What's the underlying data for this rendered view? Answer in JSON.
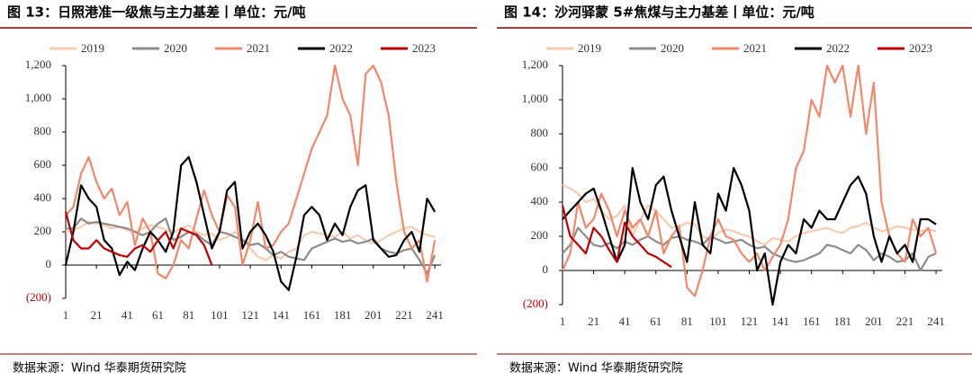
{
  "chart_data": [
    {
      "type": "line",
      "title": "图 13：日照港准一级焦与主力基差丨单位：元/吨",
      "source": "数据来源：Wind 华泰期货研究院",
      "x": [
        1,
        6,
        11,
        16,
        21,
        26,
        31,
        36,
        41,
        46,
        51,
        56,
        61,
        66,
        71,
        76,
        81,
        86,
        91,
        96,
        101,
        106,
        111,
        116,
        121,
        126,
        131,
        136,
        141,
        146,
        151,
        156,
        161,
        166,
        171,
        176,
        181,
        186,
        191,
        196,
        201,
        206,
        211,
        216,
        221,
        226,
        231,
        236,
        241
      ],
      "xlim": [
        1,
        245
      ],
      "xticks": [
        1,
        21,
        41,
        61,
        81,
        101,
        121,
        141,
        161,
        181,
        201,
        221,
        241
      ],
      "ylim": [
        -200,
        1200
      ],
      "yticks": [
        {
          "value": -200,
          "label": "(200)"
        },
        0,
        200,
        400,
        600,
        800,
        {
          "value": 1000,
          "label": "1,000"
        },
        {
          "value": 1200,
          "label": "1,200"
        }
      ],
      "series": [
        {
          "name": "2019",
          "color": "#f8cbad",
          "values": [
            200,
            210,
            230,
            260,
            250,
            240,
            220,
            230,
            210,
            200,
            220,
            240,
            230,
            210,
            200,
            220,
            240,
            200,
            180,
            190,
            150,
            170,
            200,
            160,
            100,
            50,
            30,
            60,
            40,
            80,
            100,
            180,
            200,
            190,
            180,
            170,
            200,
            160,
            180,
            150,
            130,
            150,
            180,
            200,
            220,
            230,
            200,
            180,
            170
          ]
        },
        {
          "name": "2020",
          "color": "#8c8c8c",
          "values": [
            220,
            220,
            280,
            250,
            260,
            250,
            240,
            230,
            220,
            200,
            180,
            200,
            250,
            280,
            150,
            170,
            200,
            190,
            150,
            120,
            200,
            190,
            170,
            150,
            120,
            130,
            100,
            60,
            80,
            50,
            40,
            30,
            100,
            120,
            140,
            160,
            140,
            150,
            130,
            140,
            160,
            100,
            80,
            70,
            90,
            100,
            30,
            -50,
            60
          ]
        },
        {
          "name": "2021",
          "color": "#f4876a",
          "values": [
            300,
            350,
            550,
            650,
            500,
            400,
            460,
            300,
            380,
            120,
            280,
            200,
            -50,
            -80,
            0,
            150,
            100,
            280,
            450,
            300,
            200,
            420,
            350,
            0,
            150,
            380,
            100,
            120,
            200,
            250,
            400,
            550,
            700,
            800,
            900,
            1200,
            1000,
            900,
            600,
            1150,
            1200,
            1100,
            900,
            500,
            200,
            100,
            150,
            -100,
            150
          ]
        },
        {
          "name": "2022",
          "color": "#000000",
          "values": [
            0,
            200,
            480,
            400,
            350,
            150,
            100,
            -60,
            20,
            -30,
            100,
            200,
            150,
            80,
            200,
            600,
            650,
            500,
            300,
            100,
            200,
            450,
            500,
            100,
            200,
            250,
            180,
            80,
            -100,
            -150,
            50,
            300,
            350,
            300,
            150,
            250,
            180,
            350,
            450,
            480,
            150,
            100,
            50,
            60,
            150,
            200,
            80,
            400,
            320
          ]
        },
        {
          "name": "2023",
          "color": "#c00000",
          "values": [
            320,
            150,
            100,
            100,
            150,
            100,
            80,
            60,
            50,
            100,
            120,
            80,
            150,
            200,
            100,
            220,
            200,
            180,
            120,
            0,
            null,
            null,
            null,
            null,
            null,
            null,
            null,
            null,
            null,
            null,
            null,
            null,
            null,
            null,
            null,
            null,
            null,
            null,
            null,
            null,
            null,
            null,
            null,
            null,
            null,
            null,
            null,
            null,
            null
          ]
        }
      ]
    },
    {
      "type": "line",
      "title": "图 14：沙河驿蒙 5#焦煤与主力基差丨单位：元/吨",
      "source": "数据来源：Wind 华泰期货研究院",
      "x": [
        1,
        6,
        11,
        16,
        21,
        26,
        31,
        36,
        41,
        46,
        51,
        56,
        61,
        66,
        71,
        76,
        81,
        86,
        91,
        96,
        101,
        106,
        111,
        116,
        121,
        126,
        131,
        136,
        141,
        146,
        151,
        156,
        161,
        166,
        171,
        176,
        181,
        186,
        191,
        196,
        201,
        206,
        211,
        216,
        221,
        226,
        231,
        236,
        241
      ],
      "xlim": [
        1,
        245
      ],
      "xticks": [
        1,
        21,
        41,
        61,
        81,
        101,
        121,
        141,
        161,
        181,
        201,
        221,
        241
      ],
      "ylim": [
        -200,
        1200
      ],
      "yticks": [
        {
          "value": -200,
          "label": "(200)"
        },
        0,
        200,
        400,
        600,
        800,
        {
          "value": 1000,
          "label": "1,000"
        },
        {
          "value": 1200,
          "label": "1,200"
        }
      ],
      "series": [
        {
          "name": "2019",
          "color": "#f8cbad",
          "values": [
            500,
            480,
            450,
            400,
            420,
            350,
            300,
            320,
            380,
            200,
            300,
            380,
            350,
            300,
            250,
            260,
            280,
            270,
            200,
            180,
            220,
            240,
            230,
            210,
            200,
            170,
            150,
            190,
            180,
            170,
            200,
            220,
            230,
            240,
            250,
            230,
            220,
            250,
            260,
            280,
            250,
            230,
            240,
            260,
            250,
            240,
            230,
            240,
            230
          ]
        },
        {
          "name": "2020",
          "color": "#8c8c8c",
          "values": [
            100,
            150,
            250,
            200,
            150,
            140,
            160,
            130,
            170,
            150,
            180,
            200,
            170,
            150,
            190,
            200,
            180,
            170,
            150,
            200,
            180,
            160,
            170,
            180,
            150,
            130,
            140,
            100,
            80,
            60,
            50,
            60,
            80,
            100,
            150,
            140,
            120,
            100,
            150,
            120,
            60,
            100,
            80,
            50,
            60,
            100,
            0,
            80,
            100
          ]
        },
        {
          "name": "2021",
          "color": "#f4876a",
          "values": [
            0,
            100,
            400,
            250,
            300,
            450,
            350,
            200,
            350,
            250,
            300,
            200,
            350,
            100,
            200,
            260,
            -100,
            -150,
            0,
            200,
            300,
            200,
            180,
            100,
            50,
            100,
            0,
            80,
            150,
            300,
            600,
            700,
            1000,
            900,
            1200,
            1100,
            1200,
            900,
            1200,
            800,
            1100,
            400,
            200,
            100,
            50,
            300,
            200,
            250,
            100
          ]
        },
        {
          "name": "2022",
          "color": "#000000",
          "values": [
            300,
            350,
            400,
            450,
            480,
            350,
            200,
            50,
            150,
            600,
            400,
            300,
            500,
            550,
            350,
            200,
            50,
            400,
            150,
            100,
            450,
            350,
            600,
            500,
            350,
            0,
            100,
            -200,
            50,
            150,
            100,
            300,
            250,
            350,
            300,
            300,
            400,
            500,
            550,
            450,
            200,
            50,
            200,
            100,
            150,
            50,
            300,
            300,
            270
          ]
        },
        {
          "name": "2023",
          "color": "#c00000",
          "values": [
            380,
            200,
            150,
            100,
            250,
            200,
            120,
            50,
            280,
            200,
            150,
            100,
            80,
            50,
            20,
            null,
            null,
            null,
            null,
            null,
            null,
            null,
            null,
            null,
            null,
            null,
            null,
            null,
            null,
            null,
            null,
            null,
            null,
            null,
            null,
            null,
            null,
            null,
            null,
            null,
            null,
            null,
            null,
            null,
            null,
            null,
            null,
            null,
            null
          ]
        }
      ]
    }
  ]
}
